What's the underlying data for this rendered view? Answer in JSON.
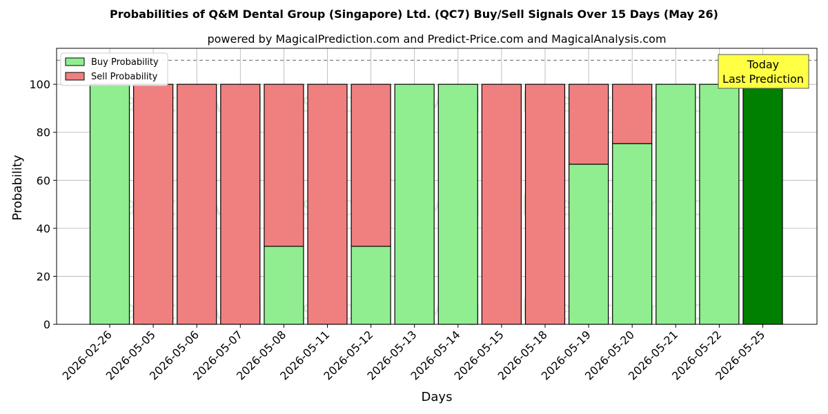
{
  "chart_data": {
    "type": "bar",
    "stacked": true,
    "title": "Probabilities of Q&M Dental Group (Singapore) Ltd. (QC7) Buy/Sell Signals Over 15 Days (May 26)",
    "subtitle": "powered by MagicalPrediction.com and Predict-Price.com and MagicalAnalysis.com",
    "xlabel": "Days",
    "ylabel": "Probability",
    "ylim": [
      0,
      115
    ],
    "yticks": [
      0,
      20,
      40,
      60,
      80,
      100
    ],
    "grid": true,
    "legend_position": "top-left",
    "threshold_line": 110,
    "categories": [
      "2026-02-26",
      "2026-05-05",
      "2026-05-06",
      "2026-05-07",
      "2026-05-08",
      "2026-05-11",
      "2026-05-12",
      "2026-05-13",
      "2026-05-14",
      "2026-05-15",
      "2026-05-18",
      "2026-05-19",
      "2026-05-20",
      "2026-05-21",
      "2026-05-22",
      "2026-05-25"
    ],
    "series": [
      {
        "name": "Buy Probability",
        "color": "#90ee90",
        "values": [
          100,
          0,
          0,
          0,
          32.5,
          0,
          32.5,
          100,
          100,
          0,
          0,
          66.7,
          75.3,
          100,
          100,
          100
        ]
      },
      {
        "name": "Sell Probability",
        "color": "#f08080",
        "values": [
          0,
          100,
          100,
          100,
          67.5,
          100,
          67.5,
          0,
          0,
          100,
          100,
          33.3,
          24.7,
          0,
          0,
          0
        ]
      }
    ],
    "highlight": {
      "index": 15,
      "color": "#008000"
    },
    "annotation": {
      "lines": [
        "Today",
        "Last Prediction"
      ],
      "background": "#ffff44"
    },
    "watermarks": [
      "MagicalAnalysis.com",
      "MagicalPrediction.com"
    ]
  }
}
